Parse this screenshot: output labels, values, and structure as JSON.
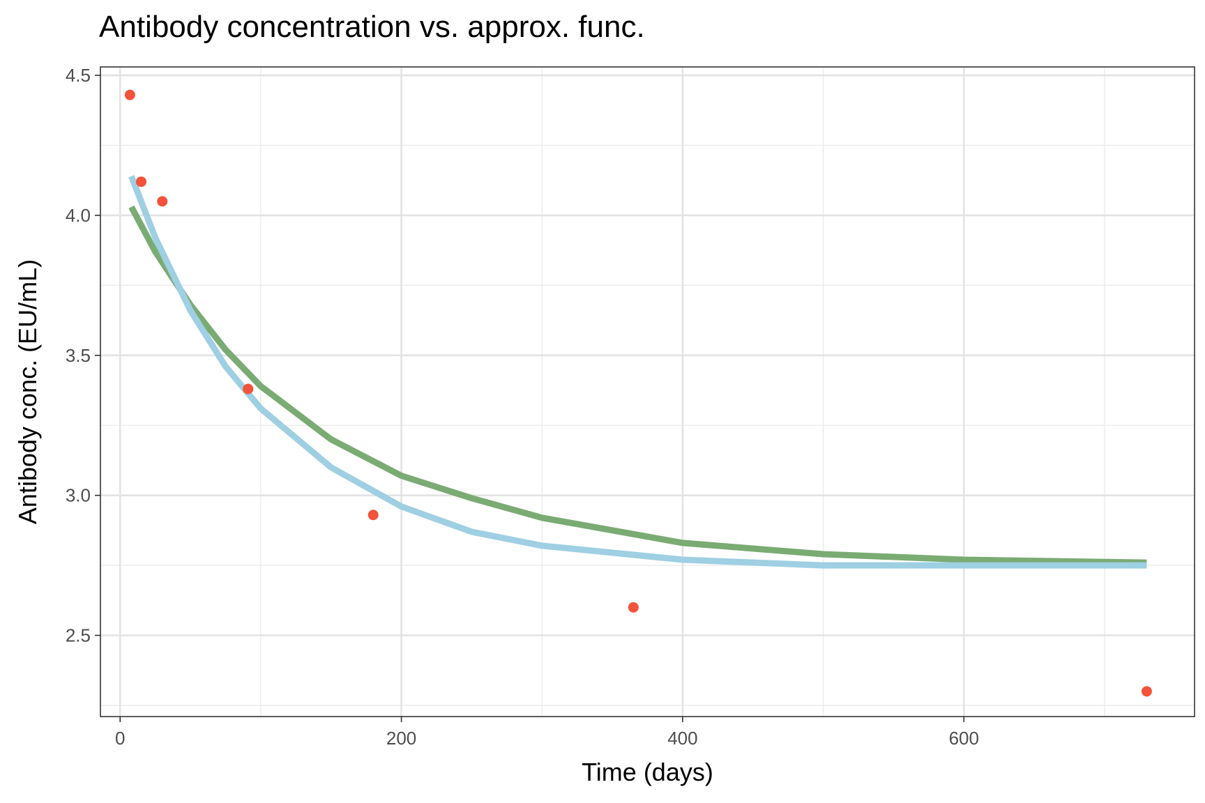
{
  "chart_data": {
    "type": "scatter",
    "title": "Antibody concentration vs. approx. func.",
    "xlabel": "Time (days)",
    "ylabel": "Antibody conc. (EU/mL)",
    "xlim": [
      -14,
      764
    ],
    "ylim": [
      2.21,
      4.53
    ],
    "x_ticks": [
      0,
      200,
      400,
      600
    ],
    "x_tick_labels": [
      "0",
      "200",
      "400",
      "600"
    ],
    "y_ticks": [
      2.5,
      3.0,
      3.5,
      4.0,
      4.5
    ],
    "y_tick_labels": [
      "2.5",
      "3.0",
      "3.5",
      "4.0",
      "4.5"
    ],
    "grid": true,
    "points": {
      "color": "#f2533a",
      "x": [
        7,
        15,
        30,
        91,
        180,
        365,
        730
      ],
      "y": [
        4.43,
        4.12,
        4.05,
        3.38,
        2.93,
        2.6,
        2.3
      ]
    },
    "series": [
      {
        "color": "#7aab73",
        "x": [
          8,
          25,
          50,
          75,
          100,
          150,
          200,
          250,
          300,
          400,
          500,
          600,
          730
        ],
        "y": [
          4.03,
          3.87,
          3.68,
          3.52,
          3.39,
          3.2,
          3.07,
          2.99,
          2.92,
          2.83,
          2.79,
          2.77,
          2.76
        ]
      },
      {
        "color": "#9ecfe2",
        "x": [
          8,
          25,
          50,
          75,
          100,
          150,
          200,
          250,
          300,
          400,
          500,
          600,
          730
        ],
        "y": [
          4.14,
          3.92,
          3.66,
          3.46,
          3.31,
          3.1,
          2.96,
          2.87,
          2.82,
          2.77,
          2.75,
          2.75,
          2.75
        ]
      }
    ]
  }
}
